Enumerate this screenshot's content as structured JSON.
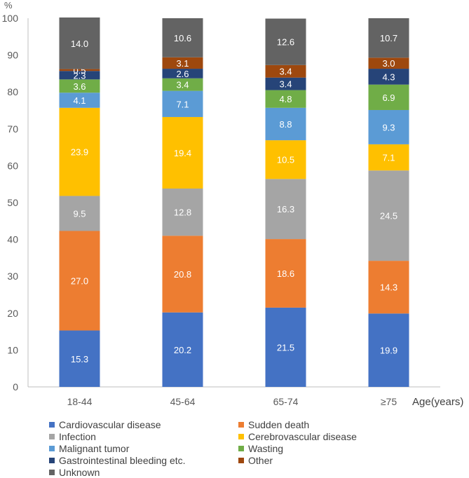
{
  "chart_data": {
    "type": "stacked-bar",
    "y_unit_label": "%",
    "xlabel": "Age(years)",
    "ylim": [
      0,
      100
    ],
    "y_ticks": [
      0,
      10,
      20,
      30,
      40,
      50,
      60,
      70,
      80,
      90,
      100
    ],
    "categories": [
      "18-44",
      "45-64",
      "65-74",
      "≥75"
    ],
    "series": [
      {
        "name": "Cardiovascular disease",
        "color": "#4472C4",
        "values": [
          15.3,
          20.2,
          21.5,
          19.9
        ]
      },
      {
        "name": "Sudden death",
        "color": "#ED7D31",
        "values": [
          27.0,
          20.8,
          18.6,
          14.3
        ]
      },
      {
        "name": "Infection",
        "color": "#A5A5A5",
        "values": [
          9.5,
          12.8,
          16.3,
          24.5
        ]
      },
      {
        "name": "Cerebrovascular disease",
        "color": "#FFC000",
        "values": [
          23.9,
          19.4,
          10.5,
          7.1
        ]
      },
      {
        "name": "Malignant tumor",
        "color": "#5B9BD5",
        "values": [
          4.1,
          7.1,
          8.8,
          9.3
        ]
      },
      {
        "name": "Wasting",
        "color": "#70AD47",
        "values": [
          3.6,
          3.4,
          4.8,
          6.9
        ]
      },
      {
        "name": "Gastrointestinal bleeding etc.",
        "color": "#264478",
        "values": [
          2.3,
          2.6,
          3.4,
          4.3
        ]
      },
      {
        "name": "Other",
        "color": "#9E480E",
        "values": [
          0.5,
          3.1,
          3.4,
          3.0
        ]
      },
      {
        "name": "Unknown",
        "color": "#636363",
        "values": [
          14.0,
          10.6,
          12.6,
          10.7
        ]
      }
    ]
  }
}
